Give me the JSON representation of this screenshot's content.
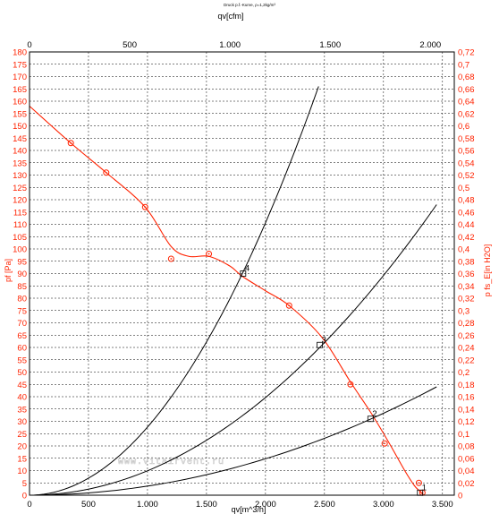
{
  "chart_data": {
    "type": "line",
    "title": "Druck p.f.-Kurve, ρ=1,2kg/m³",
    "watermark": "www.vitairvent.ru",
    "xlabel_bottom": "qv[m^3/h]",
    "xlabel_top": "qv[cfm]",
    "ylabel_left": "pf [Pa]",
    "ylabel_right": "p fs_E[in H2O]",
    "xlim": [
      0,
      3600
    ],
    "ylim": [
      0,
      180
    ],
    "x_top_lim": [
      0,
      2119
    ],
    "y_right_lim": [
      0,
      0.7226
    ],
    "x_bottom_ticks": [
      "0",
      "500",
      "1.000",
      "1.500",
      "2.000",
      "2.500",
      "3.000",
      "3.500"
    ],
    "x_top_ticks": [
      "0",
      "500",
      "1.000",
      "1.500",
      "2.000"
    ],
    "y_left_ticks": [
      "0",
      "5",
      "10",
      "15",
      "20",
      "25",
      "30",
      "35",
      "40",
      "45",
      "50",
      "55",
      "60",
      "65",
      "70",
      "75",
      "80",
      "85",
      "90",
      "95",
      "100",
      "105",
      "110",
      "115",
      "120",
      "125",
      "130",
      "135",
      "140",
      "145",
      "150",
      "155",
      "160",
      "165",
      "170",
      "175",
      "180"
    ],
    "y_right_ticks": [
      "0",
      "0,02",
      "0,04",
      "0,06",
      "0,08",
      "0,1",
      "0,12",
      "0,14",
      "0,16",
      "0,18",
      "0,2",
      "0,22",
      "0,24",
      "0,26",
      "0,28",
      "0,3",
      "0,32",
      "0,34",
      "0,36",
      "0,38",
      "0,4",
      "0,42",
      "0,44",
      "0,46",
      "0,48",
      "0,5",
      "0,52",
      "0,54",
      "0,56",
      "0,58",
      "0,6",
      "0,62",
      "0,64",
      "0,66",
      "0,68",
      "0,7",
      "0,72"
    ],
    "grid": true,
    "series": [
      {
        "color": "#ff2200",
        "x": [
          0,
          350,
          650,
          980,
          1200,
          1350,
          1520,
          1700,
          1800,
          2000,
          2200,
          2480,
          2720,
          2900,
          3050,
          3180,
          3260,
          3300,
          3320,
          3340
        ],
        "y": [
          158,
          143,
          131,
          117,
          101,
          97,
          97,
          93,
          89,
          83,
          77,
          64,
          46,
          33,
          21,
          10,
          4,
          2,
          1,
          0
        ],
        "markers_x": [
          350,
          650,
          980,
          1200,
          1520,
          2200,
          2720,
          3010,
          3300,
          3330
        ],
        "markers_y": [
          143,
          131,
          117,
          96,
          98,
          77,
          45,
          21,
          5,
          1
        ]
      },
      {
        "color": "#000000",
        "x": [
          0,
          2450
        ],
        "y": [
          0,
          166
        ]
      },
      {
        "color": "#000000",
        "x": [
          0,
          3450
        ],
        "y": [
          0,
          118
        ]
      },
      {
        "color": "#000000",
        "x": [
          0,
          3450
        ],
        "y": [
          0,
          44
        ]
      }
    ],
    "operating_points": [
      {
        "label": "4",
        "x": 1810,
        "y": 90
      },
      {
        "label": "3",
        "x": 2460,
        "y": 61
      },
      {
        "label": "2",
        "x": 2890,
        "y": 31
      },
      {
        "label": "1",
        "x": 3310,
        "y": 1
      }
    ]
  }
}
